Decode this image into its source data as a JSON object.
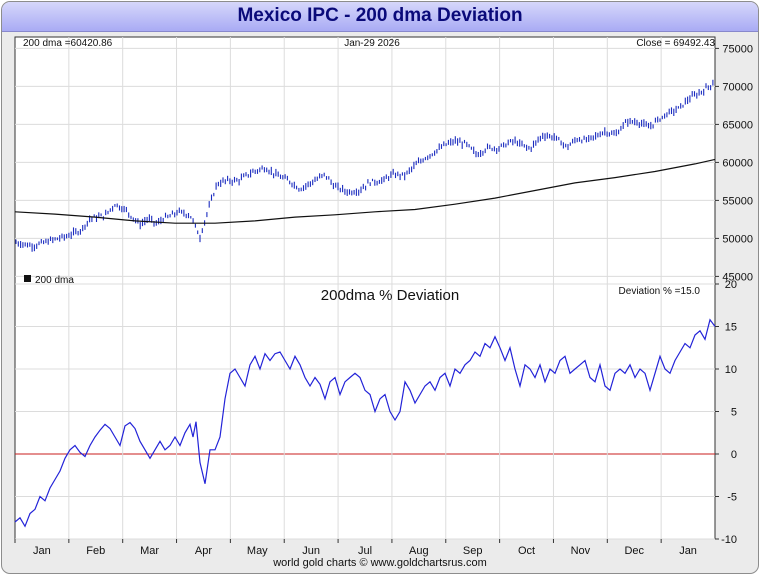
{
  "title": "Mexico IPC - 200 dma Deviation",
  "footer": "world gold charts © www.goldchartsrus.com",
  "colors": {
    "price_bars": "#1a2bbf",
    "dma_line": "#111111",
    "deviation_line": "#2323d8",
    "zero_line": "#c81e1e"
  },
  "chart_data": [
    {
      "type": "line",
      "title": "",
      "info_left": "200 dma =60420.86",
      "info_center": "Jan-29  2026",
      "info_right": "Close = 69492.43",
      "legend": "200 dma",
      "ylim": [
        44000,
        76500
      ],
      "yticks": [
        "45000",
        "50000",
        "55000",
        "60000",
        "65000",
        "70000",
        "75000"
      ],
      "x_months": [
        "Jan",
        "Feb",
        "Mar",
        "Apr",
        "May",
        "Jun",
        "Jul",
        "Aug",
        "Sep",
        "Oct",
        "Nov",
        "Dec",
        "Jan"
      ],
      "series": [
        {
          "name": "Mexico IPC (daily range bars)",
          "x": [
            0,
            18,
            35,
            52,
            66,
            75,
            90,
            100,
            110,
            125,
            133,
            142,
            148,
            155,
            163,
            175,
            185,
            193,
            202,
            212,
            223,
            237,
            250,
            262,
            274,
            285,
            297,
            310,
            320,
            333,
            344,
            355,
            368,
            377,
            390,
            400,
            410,
            420,
            430,
            440,
            451,
            462,
            472,
            484,
            494,
            500,
            506,
            515,
            528,
            540,
            552,
            562,
            572,
            580,
            590,
            600,
            612,
            624,
            634,
            641,
            652,
            664,
            674,
            684,
            694,
            700
          ],
          "values": [
            49500,
            49000,
            49700,
            50300,
            51100,
            52600,
            53000,
            54500,
            53800,
            51800,
            52600,
            51900,
            52600,
            52900,
            53500,
            53100,
            50200,
            53700,
            57200,
            57600,
            57600,
            58700,
            59300,
            58300,
            57600,
            56500,
            57400,
            58400,
            56800,
            56100,
            56300,
            57400,
            57600,
            58400,
            58300,
            59600,
            60600,
            61400,
            62300,
            62800,
            62400,
            61000,
            61900,
            61900,
            62600,
            62800,
            62300,
            61800,
            63600,
            63300,
            62000,
            63100,
            62900,
            63400,
            64100,
            63600,
            65400,
            65300,
            64600,
            65400,
            66400,
            67100,
            68400,
            69100,
            70000,
            70700
          ]
        },
        {
          "name": "200 dma",
          "x": [
            0,
            40,
            80,
            120,
            160,
            200,
            240,
            280,
            320,
            360,
            400,
            440,
            480,
            520,
            560,
            600,
            640,
            680,
            700
          ],
          "values": [
            53500,
            53200,
            52800,
            52300,
            52000,
            52000,
            52300,
            52800,
            53100,
            53500,
            53800,
            54500,
            55300,
            56300,
            57300,
            58000,
            58800,
            59800,
            60400
          ]
        }
      ]
    },
    {
      "type": "line",
      "title": "200dma  %  Deviation",
      "info_right": "Deviation % =15.0",
      "ylim": [
        -10,
        20
      ],
      "yticks": [
        "-10",
        "-5",
        "0",
        "5",
        "10",
        "15",
        "20"
      ],
      "x_months": [
        "Jan",
        "Feb",
        "Mar",
        "Apr",
        "May",
        "Jun",
        "Jul",
        "Aug",
        "Sep",
        "Oct",
        "Nov",
        "Dec",
        "Jan"
      ],
      "series": [
        {
          "name": "Deviation %",
          "x": [
            0,
            5,
            10,
            15,
            20,
            25,
            30,
            35,
            40,
            45,
            50,
            55,
            60,
            65,
            70,
            75,
            80,
            85,
            90,
            95,
            100,
            105,
            110,
            115,
            120,
            125,
            130,
            135,
            140,
            145,
            150,
            155,
            160,
            165,
            170,
            175,
            178,
            181,
            185,
            190,
            195,
            200,
            205,
            210,
            215,
            220,
            225,
            230,
            235,
            240,
            245,
            250,
            255,
            260,
            265,
            270,
            275,
            280,
            285,
            290,
            295,
            300,
            305,
            310,
            315,
            320,
            325,
            330,
            335,
            340,
            345,
            350,
            355,
            360,
            365,
            370,
            375,
            380,
            385,
            390,
            395,
            400,
            405,
            410,
            415,
            420,
            425,
            430,
            435,
            440,
            445,
            450,
            455,
            460,
            465,
            470,
            475,
            480,
            485,
            490,
            495,
            500,
            505,
            510,
            515,
            520,
            525,
            530,
            535,
            540,
            545,
            550,
            555,
            560,
            565,
            570,
            575,
            580,
            585,
            590,
            595,
            600,
            605,
            610,
            615,
            620,
            625,
            630,
            635,
            640,
            645,
            650,
            655,
            660,
            665,
            670,
            675,
            680,
            685,
            690,
            695,
            700
          ],
          "values": [
            -8.0,
            -7.5,
            -8.5,
            -7.0,
            -6.5,
            -5.0,
            -5.5,
            -4.0,
            -3.0,
            -2.0,
            -0.5,
            0.5,
            1.0,
            0.2,
            -0.3,
            1.0,
            2.0,
            2.8,
            3.5,
            3.0,
            2.0,
            1.0,
            3.3,
            3.7,
            3.0,
            1.5,
            0.5,
            -0.5,
            0.5,
            1.5,
            0.5,
            1.0,
            2.0,
            1.0,
            2.5,
            3.5,
            2.0,
            3.8,
            -1.0,
            -3.5,
            0.5,
            0.5,
            2.0,
            6.5,
            9.5,
            10.0,
            9.0,
            8.0,
            10.5,
            11.5,
            10.0,
            11.8,
            11.0,
            11.8,
            12.0,
            11.0,
            10.0,
            11.5,
            10.5,
            9.0,
            8.0,
            9.0,
            8.2,
            6.5,
            8.5,
            9.0,
            7.0,
            8.5,
            9.0,
            9.5,
            9.0,
            7.5,
            7.0,
            5.0,
            6.5,
            7.0,
            5.0,
            4.0,
            5.0,
            8.5,
            7.5,
            6.0,
            7.0,
            8.0,
            8.5,
            7.5,
            9.0,
            9.5,
            8.0,
            10.0,
            9.5,
            10.5,
            11.0,
            12.0,
            11.5,
            13.0,
            12.5,
            13.8,
            12.5,
            11.0,
            12.5,
            10.0,
            8.0,
            10.5,
            10.0,
            9.0,
            10.5,
            8.5,
            10.0,
            9.5,
            11.0,
            11.5,
            9.5,
            10.0,
            10.5,
            11.0,
            9.0,
            8.5,
            10.5,
            8.0,
            7.5,
            9.5,
            10.0,
            9.5,
            10.5,
            9.0,
            10.0,
            9.5,
            7.5,
            9.5,
            11.5,
            10.0,
            9.5,
            11.0,
            12.0,
            13.0,
            12.5,
            14.0,
            14.5,
            13.5,
            15.8,
            15.0
          ]
        }
      ],
      "reference_line": {
        "name": "zero",
        "value": 0
      }
    }
  ]
}
